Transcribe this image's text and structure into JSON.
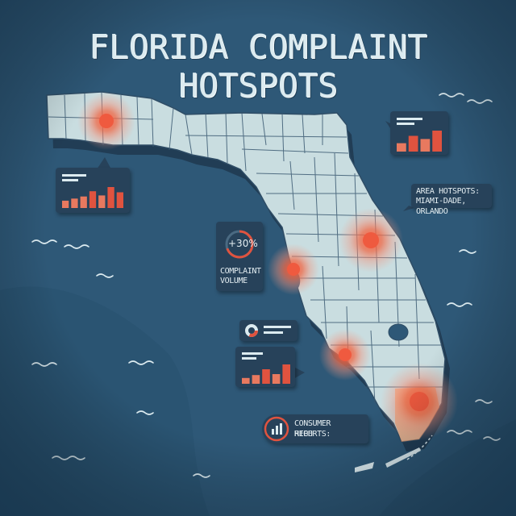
{
  "title": "FLORIDA COMPLAINT HOTSPOTS",
  "colors": {
    "ocean": "#2e5877",
    "land": "#c9dde0",
    "county_line": "#3a5870",
    "hotspot": "#e5523a",
    "panel": "#27425a",
    "bar_accent": "#e0533f"
  },
  "hotspots": [
    {
      "location": "Florida Panhandle (Pensacola area)"
    },
    {
      "location": "Orlando"
    },
    {
      "location": "Tampa"
    },
    {
      "location": "Fort Myers"
    },
    {
      "location": "Miami-Dade"
    }
  ],
  "callouts": {
    "area_hotspots": {
      "line1": "AREA HOTSPOTS:",
      "line2": "MIAMI-DADE, ORLANDO"
    },
    "complaint_volume": {
      "change": "+30%",
      "line1": "COMPLAINT",
      "line2": "VOLUME"
    },
    "consumer_reports": {
      "line1": "CONSUMER REPORTS:",
      "line2": "HIGH",
      "icon": "bar-chart-icon"
    }
  },
  "mini_charts": [
    {
      "id": "panhandle",
      "bars": [
        0.35,
        0.45,
        0.55,
        0.8,
        0.6,
        1.0,
        0.75
      ]
    },
    {
      "id": "northeast",
      "bars": [
        0.4,
        0.75,
        0.6,
        1.0
      ]
    },
    {
      "id": "southwest",
      "bars": [
        0.3,
        0.45,
        0.75,
        0.5,
        1.0
      ]
    }
  ],
  "donut_card": {
    "icon": "donut-chart-icon"
  }
}
